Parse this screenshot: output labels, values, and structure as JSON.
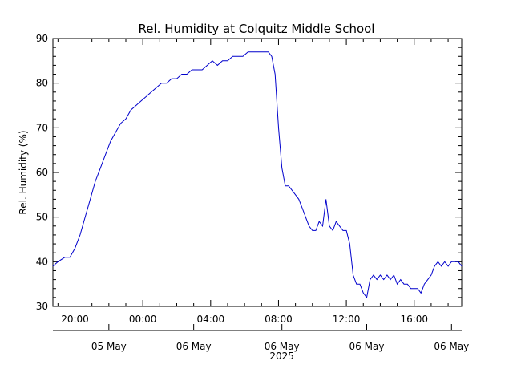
{
  "chart_data": {
    "type": "line",
    "title": "Rel. Humidity at Colquitz Middle School",
    "ylabel": "Rel. Humidity (%)",
    "xlabel": "",
    "ylim": [
      30,
      90
    ],
    "yticks": [
      30,
      40,
      50,
      60,
      70,
      80,
      90
    ],
    "xlim_hours": [
      -5.3,
      18.8
    ],
    "xticks": [
      {
        "hour": -4,
        "label": "20:00"
      },
      {
        "hour": 0,
        "label": "00:00"
      },
      {
        "hour": 4,
        "label": "04:00"
      },
      {
        "hour": 8,
        "label": "08:00"
      },
      {
        "hour": 12,
        "label": "12:00"
      },
      {
        "hour": 16,
        "label": "16:00"
      }
    ],
    "date_labels": [
      {
        "hour": -2,
        "label": "05 May"
      },
      {
        "hour": 3,
        "label": "06 May"
      },
      {
        "hour": 8.2,
        "label": "06 May"
      },
      {
        "hour": 13.2,
        "label": "06 May"
      },
      {
        "hour": 18.2,
        "label": "06 May"
      }
    ],
    "year_label": {
      "hour": 8.2,
      "label": "2025"
    },
    "line_color": "#0000cc",
    "grid": false,
    "series": [
      {
        "x": [
          -5.3,
          -5.0,
          -4.6,
          -4.3,
          -4.0,
          -3.7,
          -3.4,
          -3.1,
          -2.8,
          -2.5,
          -2.2,
          -1.9,
          -1.6,
          -1.3,
          -1.0,
          -0.7,
          -0.4,
          -0.1,
          0.2,
          0.5,
          0.8,
          1.1,
          1.4,
          1.7,
          2.0,
          2.3,
          2.6,
          2.9,
          3.2,
          3.5,
          3.8,
          4.1,
          4.4,
          4.7,
          5.0,
          5.3,
          5.6,
          5.9,
          6.2,
          6.5,
          6.8,
          7.1,
          7.4,
          7.6,
          7.8,
          8.0,
          8.2,
          8.4,
          8.6,
          8.8,
          9.0,
          9.2,
          9.4,
          9.6,
          9.8,
          10.0,
          10.2,
          10.4,
          10.6,
          10.8,
          11.0,
          11.2,
          11.4,
          11.6,
          11.8,
          12.0,
          12.2,
          12.4,
          12.6,
          12.8,
          13.0,
          13.2,
          13.4,
          13.6,
          13.8,
          14.0,
          14.2,
          14.4,
          14.6,
          14.8,
          15.0,
          15.2,
          15.4,
          15.6,
          15.8,
          16.0,
          16.2,
          16.4,
          16.6,
          16.8,
          17.0,
          17.2,
          17.4,
          17.6,
          17.8,
          18.0,
          18.2,
          18.4,
          18.6,
          18.8
        ],
        "y": [
          39,
          40,
          41,
          41,
          43,
          46,
          50,
          54,
          58,
          61,
          64,
          67,
          69,
          71,
          72,
          74,
          75,
          76,
          77,
          78,
          79,
          80,
          80,
          81,
          81,
          82,
          82,
          83,
          83,
          83,
          84,
          85,
          84,
          85,
          85,
          86,
          86,
          86,
          87,
          87,
          87,
          87,
          87,
          86,
          82,
          70,
          61,
          57,
          57,
          56,
          55,
          54,
          52,
          50,
          48,
          47,
          47,
          49,
          48,
          54,
          48,
          47,
          49,
          48,
          47,
          47,
          44,
          37,
          35,
          35,
          33,
          32,
          36,
          37,
          36,
          37,
          36,
          37,
          36,
          37,
          35,
          36,
          35,
          35,
          34,
          34,
          34,
          33,
          35,
          36,
          37,
          39,
          40,
          39,
          40,
          39,
          40,
          40,
          40,
          39
        ]
      }
    ]
  }
}
